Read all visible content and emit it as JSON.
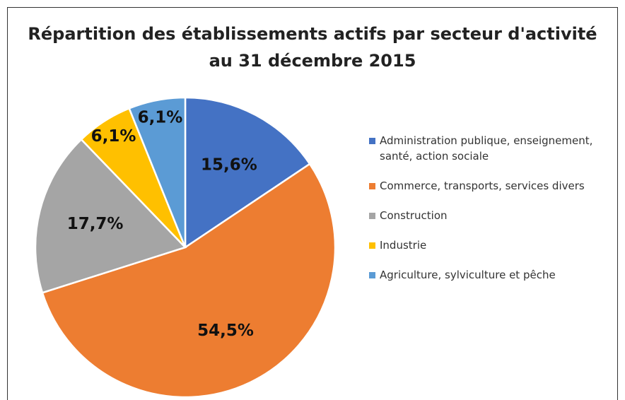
{
  "chart_data": {
    "type": "pie",
    "title": [
      "Répartition des établissements actifs par secteur d'activité",
      "au 31 décembre 2015"
    ],
    "categories": [
      "Administration publique, enseignement, santé, action sociale",
      "Commerce, transports, services divers",
      "Construction",
      "Industrie",
      "Agriculture, sylviculture et pêche"
    ],
    "values": [
      15.6,
      54.5,
      17.7,
      6.1,
      6.1
    ],
    "value_labels": [
      "15,6%",
      "54,5%",
      "17,7%",
      "6,1%",
      "6,1%"
    ],
    "colors": [
      "#4472c4",
      "#ed7d31",
      "#a5a5a5",
      "#ffc000",
      "#5b9bd5"
    ],
    "legend": "right"
  }
}
